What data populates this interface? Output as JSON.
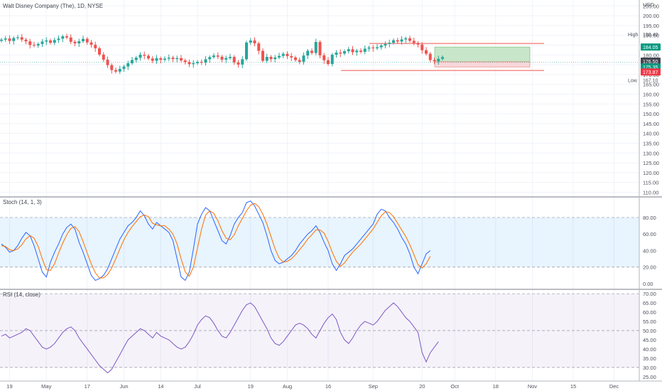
{
  "chart_data": [
    {
      "type": "candlestick",
      "title": "Walt Disney Company (The), 1D, NYSE",
      "currency": "USD",
      "y_ticks": [
        110,
        115,
        120,
        125,
        130,
        135,
        140,
        145,
        150,
        155,
        160,
        165,
        170,
        175,
        180,
        185,
        190,
        195,
        200,
        205
      ],
      "ylim": [
        108,
        208
      ],
      "grid": true,
      "high_label": "High",
      "high_value": "190.40",
      "low_label": "Low",
      "low_value": "167.10",
      "price_tags": [
        {
          "value": 184.05,
          "text": "184.05",
          "bg": "#089981",
          "fg": "#ffffff"
        },
        {
          "value": 176.5,
          "text": "176.50",
          "bg": "#434651",
          "fg": "#ffffff"
        },
        {
          "value": 175.35,
          "text": "175.35",
          "bg": "#089981",
          "fg": "#ffffff"
        },
        {
          "value": 173.87,
          "text": "173.87",
          "bg": "#f23645",
          "fg": "#ffffff"
        }
      ],
      "colors": {
        "up": "#26a69a",
        "down": "#ef5350",
        "profit_zone": "#c8e6c9",
        "loss_zone": "#f8d7da"
      },
      "position": {
        "entry": 176.5,
        "target": 184.05,
        "stop": 173.87
      },
      "closes": [
        187.8,
        188.4,
        187.1,
        188.6,
        189.0,
        187.8,
        186.9,
        185.1,
        184.8,
        185.6,
        186.8,
        187.4,
        186.2,
        187.6,
        188.3,
        189.5,
        188.9,
        186.7,
        185.9,
        187.0,
        188.2,
        186.4,
        185.2,
        183.4,
        180.2,
        177.6,
        174.8,
        172.3,
        171.5,
        172.9,
        174.1,
        175.8,
        177.4,
        178.6,
        180.1,
        179.6,
        178.2,
        177.0,
        178.3,
        177.5,
        178.1,
        178.6,
        177.9,
        178.4,
        177.2,
        176.4,
        175.3,
        175.8,
        176.5,
        176.1,
        177.8,
        178.9,
        179.7,
        179.1,
        177.6,
        178.4,
        179.0,
        176.2,
        175.1,
        177.8,
        186.3,
        187.4,
        185.9,
        182.1,
        177.0,
        179.0,
        177.9,
        178.7,
        179.5,
        180.6,
        179.4,
        178.7,
        177.4,
        176.5,
        179.7,
        182.1,
        181.0,
        186.6,
        179.8,
        177.3,
        175.4,
        180.1,
        181.2,
        180.7,
        181.9,
        182.9,
        181.4,
        182.2,
        181.6,
        183.2,
        183.8,
        183.4,
        183.9,
        184.8,
        185.6,
        186.2,
        187.5,
        186.8,
        187.9,
        188.5,
        187.2,
        186.1,
        185.3,
        182.4,
        180.6,
        177.4,
        176.8,
        178.0,
        178.9
      ],
      "x_ticks": [
        {
          "label": "19",
          "index": 2
        },
        {
          "label": "May",
          "index": 11
        },
        {
          "label": "17",
          "index": 21
        },
        {
          "label": "Jun",
          "index": 30
        },
        {
          "label": "14",
          "index": 39
        },
        {
          "label": "Jul",
          "index": 48
        },
        {
          "label": "19",
          "index": 61
        },
        {
          "label": "Aug",
          "index": 70
        },
        {
          "label": "16",
          "index": 80
        },
        {
          "label": "Sep",
          "index": 91
        },
        {
          "label": "20",
          "index": 103
        },
        {
          "label": "Oct",
          "index": 111
        },
        {
          "label": "18",
          "index": 121
        },
        {
          "label": "Nov",
          "index": 130
        },
        {
          "label": "15",
          "index": 140
        },
        {
          "label": "Dec",
          "index": 150
        }
      ]
    },
    {
      "type": "line",
      "title": "Stoch (14, 1, 3)",
      "y_ticks": [
        0,
        20,
        40,
        60,
        80
      ],
      "y_tick_text": [
        "0.00",
        "20.00",
        "40.00",
        "60.00",
        "80.00"
      ],
      "ylim": [
        -6,
        104
      ],
      "bands": [
        20,
        80
      ],
      "series": [
        {
          "color": "#2962ff",
          "values": [
            48,
            44,
            38,
            40,
            46,
            55,
            62,
            58,
            46,
            30,
            14,
            8,
            26,
            38,
            48,
            60,
            68,
            72,
            66,
            50,
            38,
            24,
            10,
            4,
            6,
            10,
            18,
            30,
            42,
            54,
            62,
            70,
            74,
            80,
            88,
            82,
            72,
            66,
            74,
            70,
            66,
            62,
            52,
            30,
            8,
            4,
            14,
            42,
            72,
            84,
            92,
            88,
            76,
            64,
            52,
            48,
            58,
            72,
            80,
            86,
            98,
            100,
            94,
            84,
            74,
            58,
            40,
            28,
            24,
            26,
            30,
            34,
            40,
            48,
            54,
            60,
            64,
            70,
            62,
            50,
            40,
            24,
            16,
            24,
            34,
            38,
            42,
            48,
            54,
            60,
            66,
            72,
            84,
            90,
            88,
            80,
            74,
            66,
            56,
            48,
            36,
            20,
            12,
            24,
            36,
            40
          ]
        },
        {
          "color": "#ff6d00",
          "values": [
            46,
            45,
            41,
            40,
            42,
            47,
            54,
            58,
            55,
            45,
            30,
            17,
            16,
            24,
            37,
            49,
            59,
            67,
            69,
            63,
            51,
            37,
            24,
            13,
            7,
            7,
            11,
            19,
            30,
            42,
            53,
            62,
            69,
            75,
            81,
            83,
            81,
            73,
            71,
            70,
            70,
            66,
            60,
            48,
            30,
            14,
            9,
            20,
            43,
            66,
            83,
            88,
            85,
            76,
            64,
            55,
            53,
            59,
            70,
            79,
            88,
            95,
            97,
            93,
            84,
            72,
            57,
            42,
            31,
            26,
            27,
            30,
            35,
            41,
            47,
            54,
            59,
            65,
            65,
            61,
            51,
            38,
            27,
            21,
            25,
            32,
            38,
            43,
            48,
            54,
            60,
            66,
            74,
            82,
            87,
            86,
            81,
            73,
            65,
            57,
            47,
            35,
            23,
            19,
            24,
            33
          ]
        }
      ]
    },
    {
      "type": "line",
      "title": "RSI (14, close)",
      "y_ticks": [
        25,
        30,
        35,
        40,
        45,
        50,
        55,
        60,
        65,
        70
      ],
      "y_tick_text": [
        "25.00",
        "30.00",
        "35.00",
        "40.00",
        "45.00",
        "50.00",
        "55.00",
        "60.00",
        "65.00",
        "70.00"
      ],
      "ylim": [
        23,
        72
      ],
      "bands": [
        30,
        50,
        70
      ],
      "series": [
        {
          "color": "#7e57c2",
          "values": [
            47,
            48,
            46,
            47,
            48,
            49,
            51,
            50,
            47,
            44,
            41,
            40,
            41,
            43,
            46,
            49,
            51,
            52,
            50,
            46,
            43,
            40,
            37,
            34,
            31,
            29,
            27,
            29,
            33,
            37,
            41,
            45,
            47,
            49,
            51,
            50,
            48,
            46,
            49,
            47,
            46,
            45,
            43,
            41,
            40,
            41,
            44,
            48,
            53,
            56,
            58,
            57,
            54,
            50,
            47,
            46,
            49,
            53,
            57,
            61,
            64,
            65,
            63,
            59,
            55,
            51,
            46,
            43,
            42,
            44,
            47,
            50,
            53,
            54,
            53,
            51,
            48,
            46,
            50,
            54,
            57,
            59,
            56,
            49,
            45,
            43,
            46,
            50,
            53,
            55,
            54,
            53,
            55,
            58,
            61,
            63,
            65,
            63,
            60,
            57,
            55,
            52,
            49,
            38,
            33,
            38,
            41,
            44
          ]
        }
      ]
    }
  ]
}
